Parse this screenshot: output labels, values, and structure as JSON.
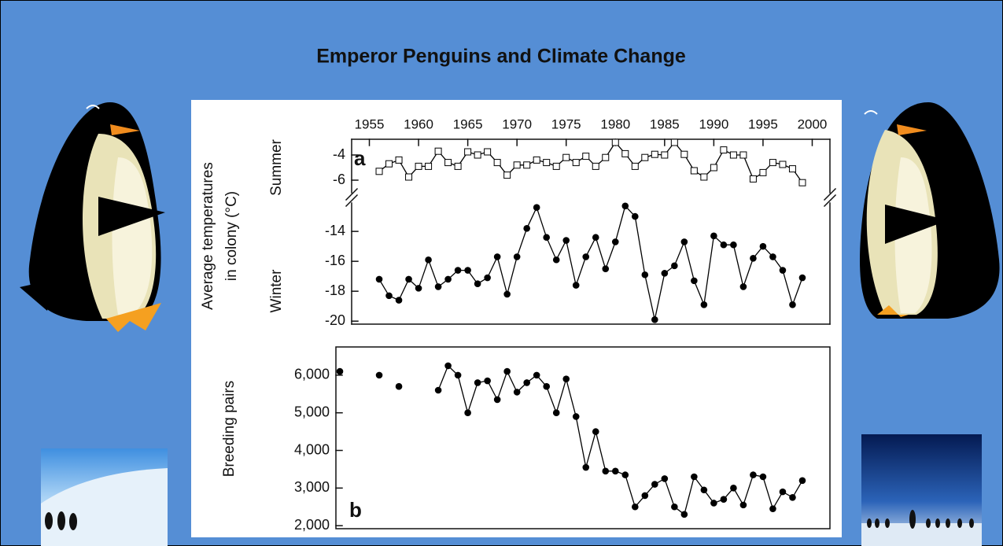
{
  "title": "Emperor Penguins and Climate Change",
  "chart_data": [
    {
      "type": "line",
      "label": "a",
      "ylabel": "Summer",
      "x": [
        1956,
        1957,
        1958,
        1959,
        1960,
        1961,
        1962,
        1963,
        1964,
        1965,
        1966,
        1967,
        1968,
        1969,
        1970,
        1971,
        1972,
        1973,
        1974,
        1975,
        1976,
        1977,
        1978,
        1979,
        1980,
        1981,
        1982,
        1983,
        1984,
        1985,
        1986,
        1987,
        1988,
        1989,
        1990,
        1991,
        1992,
        1993,
        1994,
        1995,
        1996,
        1997,
        1998,
        1999
      ],
      "series": [
        {
          "color": "#000000",
          "marker": "open-square",
          "values": [
            -5.3,
            -4.7,
            -4.4,
            -5.75,
            -4.9,
            -4.9,
            -3.7,
            -4.6,
            -4.9,
            -3.75,
            -4.0,
            -3.75,
            -4.6,
            -5.6,
            -4.8,
            -4.8,
            -4.4,
            -4.6,
            -4.9,
            -4.2,
            -4.6,
            -4.1,
            -4.9,
            -4.2,
            -3.0,
            -3.9,
            -4.9,
            -4.2,
            -3.95,
            -4.0,
            -3.0,
            -3.95,
            -5.25,
            -5.75,
            -5.0,
            -3.6,
            -4.0,
            -4.0,
            -5.9,
            -5.4,
            -4.6,
            -4.75,
            -5.1,
            -6.2
          ]
        }
      ],
      "xlim": [
        1953.2,
        2001.8
      ],
      "xticks": [
        1955,
        1960,
        1965,
        1970,
        1975,
        1980,
        1985,
        1990,
        1995,
        2000
      ],
      "ylim": [
        -7,
        -2.75
      ],
      "yticks": [
        -4,
        -6
      ]
    },
    {
      "type": "line",
      "ylabel": "Winter",
      "axis_title": [
        "Average temperatures",
        "in colony (°C)"
      ],
      "x": [
        1956,
        1957,
        1958,
        1959,
        1960,
        1961,
        1962,
        1963,
        1964,
        1965,
        1966,
        1967,
        1968,
        1969,
        1970,
        1971,
        1972,
        1973,
        1974,
        1975,
        1976,
        1977,
        1978,
        1979,
        1980,
        1981,
        1982,
        1983,
        1984,
        1985,
        1986,
        1987,
        1988,
        1989,
        1990,
        1991,
        1992,
        1993,
        1994,
        1995,
        1996,
        1997,
        1998,
        1999
      ],
      "series": [
        {
          "color": "#000000",
          "marker": "filled-circle",
          "values": [
            -17.2,
            -18.3,
            -18.6,
            -17.2,
            -17.8,
            -15.9,
            -17.7,
            -17.2,
            -16.6,
            -16.6,
            -17.5,
            -17.1,
            -15.7,
            -18.2,
            -15.7,
            -13.8,
            -12.4,
            -14.4,
            -15.9,
            -14.6,
            -17.6,
            -15.7,
            -14.4,
            -16.5,
            -14.7,
            -12.3,
            -13.0,
            -16.9,
            -19.9,
            -16.8,
            -16.3,
            -14.7,
            -17.3,
            -18.9,
            -14.3,
            -14.9,
            -14.9,
            -17.7,
            -15.8,
            -15.0,
            -15.7,
            -16.6,
            -18.9,
            -17.1
          ]
        }
      ],
      "xlim": [
        1953.2,
        2001.8
      ],
      "ylim": [
        -20.2,
        -12.1
      ],
      "yticks": [
        -14,
        -16,
        -18,
        -20
      ]
    },
    {
      "type": "line",
      "label": "b",
      "ylabel": "Breeding pairs",
      "x": [
        1952,
        1953,
        1954,
        1955,
        1956,
        1957,
        1958,
        1959,
        1960,
        1961,
        1962,
        1963,
        1964,
        1965,
        1966,
        1967,
        1968,
        1969,
        1970,
        1971,
        1972,
        1973,
        1974,
        1975,
        1976,
        1977,
        1978,
        1979,
        1980,
        1981,
        1982,
        1983,
        1984,
        1985,
        1986,
        1987,
        1988,
        1989,
        1990,
        1991,
        1992,
        1993,
        1994,
        1995,
        1996,
        1997,
        1998,
        1999
      ],
      "series": [
        {
          "color": "#000000",
          "marker": "filled-circle",
          "values": [
            6100,
            null,
            null,
            null,
            6000,
            null,
            5700,
            null,
            null,
            null,
            5600,
            6250,
            6000,
            5000,
            5800,
            5850,
            5350,
            6100,
            5550,
            5800,
            6000,
            5700,
            5000,
            5900,
            4900,
            3550,
            4500,
            3450,
            3450,
            3350,
            2500,
            2800,
            3100,
            3250,
            2500,
            2300,
            3300,
            2950,
            2600,
            2700,
            3000,
            2550,
            3350,
            3300,
            2450,
            2900,
            2750,
            3200
          ]
        }
      ],
      "xlim": [
        1951.6,
        2001.8
      ],
      "ylim": [
        1920,
        6750
      ],
      "yticks": [
        {
          "value": 2000,
          "label": "2,000"
        },
        {
          "value": 3000,
          "label": "3,000"
        },
        {
          "value": 4000,
          "label": "4,000"
        },
        {
          "value": 5000,
          "label": "5,000"
        },
        {
          "value": 6000,
          "label": "6,000"
        }
      ]
    }
  ]
}
